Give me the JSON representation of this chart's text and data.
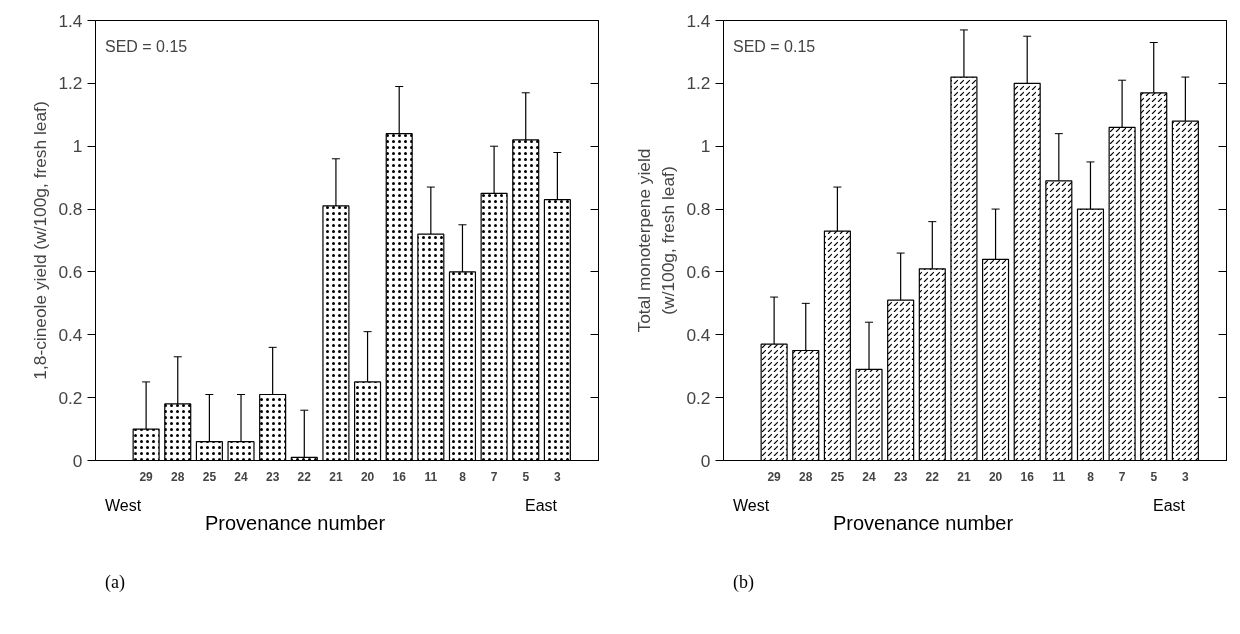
{
  "chart_data": [
    {
      "type": "bar",
      "categories": [
        "29",
        "28",
        "25",
        "24",
        "23",
        "22",
        "21",
        "20",
        "16",
        "11",
        "8",
        "7",
        "5",
        "3"
      ],
      "xlabel": "Provenance number",
      "ylabel": "1,8-cineole yield (w/100g, fresh leaf)",
      "color": "#ffffff",
      "values": [
        0.1,
        0.18,
        0.06,
        0.06,
        0.21,
        0.01,
        0.81,
        0.25,
        1.04,
        0.72,
        0.6,
        0.85,
        1.02,
        0.83
      ],
      "errors": [
        [
          0.1,
          0.25
        ],
        [
          0.18,
          0.33
        ],
        [
          0.06,
          0.21
        ],
        [
          0.06,
          0.21
        ],
        [
          0.21,
          0.36
        ],
        [
          0.01,
          0.16
        ],
        [
          0.81,
          0.96
        ],
        [
          0.25,
          0.41
        ],
        [
          1.04,
          1.19
        ],
        [
          0.72,
          0.87
        ],
        [
          0.6,
          0.75
        ],
        [
          0.85,
          1.0
        ],
        [
          1.02,
          1.17
        ],
        [
          0.83,
          0.98
        ]
      ],
      "ylim": [
        0,
        1.4
      ],
      "yticks": [
        0,
        0.2,
        0.4,
        0.6,
        0.8,
        1,
        1.2,
        1.4
      ],
      "grid": false,
      "annotations": [
        "SED = 0.15",
        "West",
        "East",
        "(a)"
      ]
    },
    {
      "type": "bar",
      "categories": [
        "29",
        "28",
        "25",
        "24",
        "23",
        "22",
        "21",
        "20",
        "16",
        "11",
        "8",
        "7",
        "5",
        "3"
      ],
      "xlabel": "Provenance number",
      "ylabel": "Total monoterpene yield\n(w/100g, fresh leaf)",
      "color": "#ffffff",
      "values": [
        0.37,
        0.35,
        0.73,
        0.29,
        0.51,
        0.61,
        1.22,
        0.64,
        1.2,
        0.89,
        0.8,
        1.06,
        1.17,
        1.08
      ],
      "errors": [
        [
          0.37,
          0.52
        ],
        [
          0.35,
          0.5
        ],
        [
          0.73,
          0.87
        ],
        [
          0.29,
          0.44
        ],
        [
          0.51,
          0.66
        ],
        [
          0.61,
          0.76
        ],
        [
          1.22,
          1.37
        ],
        [
          0.64,
          0.8
        ],
        [
          1.2,
          1.35
        ],
        [
          0.89,
          1.04
        ],
        [
          0.8,
          0.95
        ],
        [
          1.06,
          1.21
        ],
        [
          1.17,
          1.33
        ],
        [
          1.08,
          1.22
        ]
      ],
      "ylim": [
        0,
        1.4
      ],
      "yticks": [
        0,
        0.2,
        0.4,
        0.6,
        0.8,
        1,
        1.2,
        1.4
      ],
      "grid": false,
      "annotations": [
        "SED = 0.15",
        "West",
        "East",
        "(b)"
      ]
    }
  ]
}
